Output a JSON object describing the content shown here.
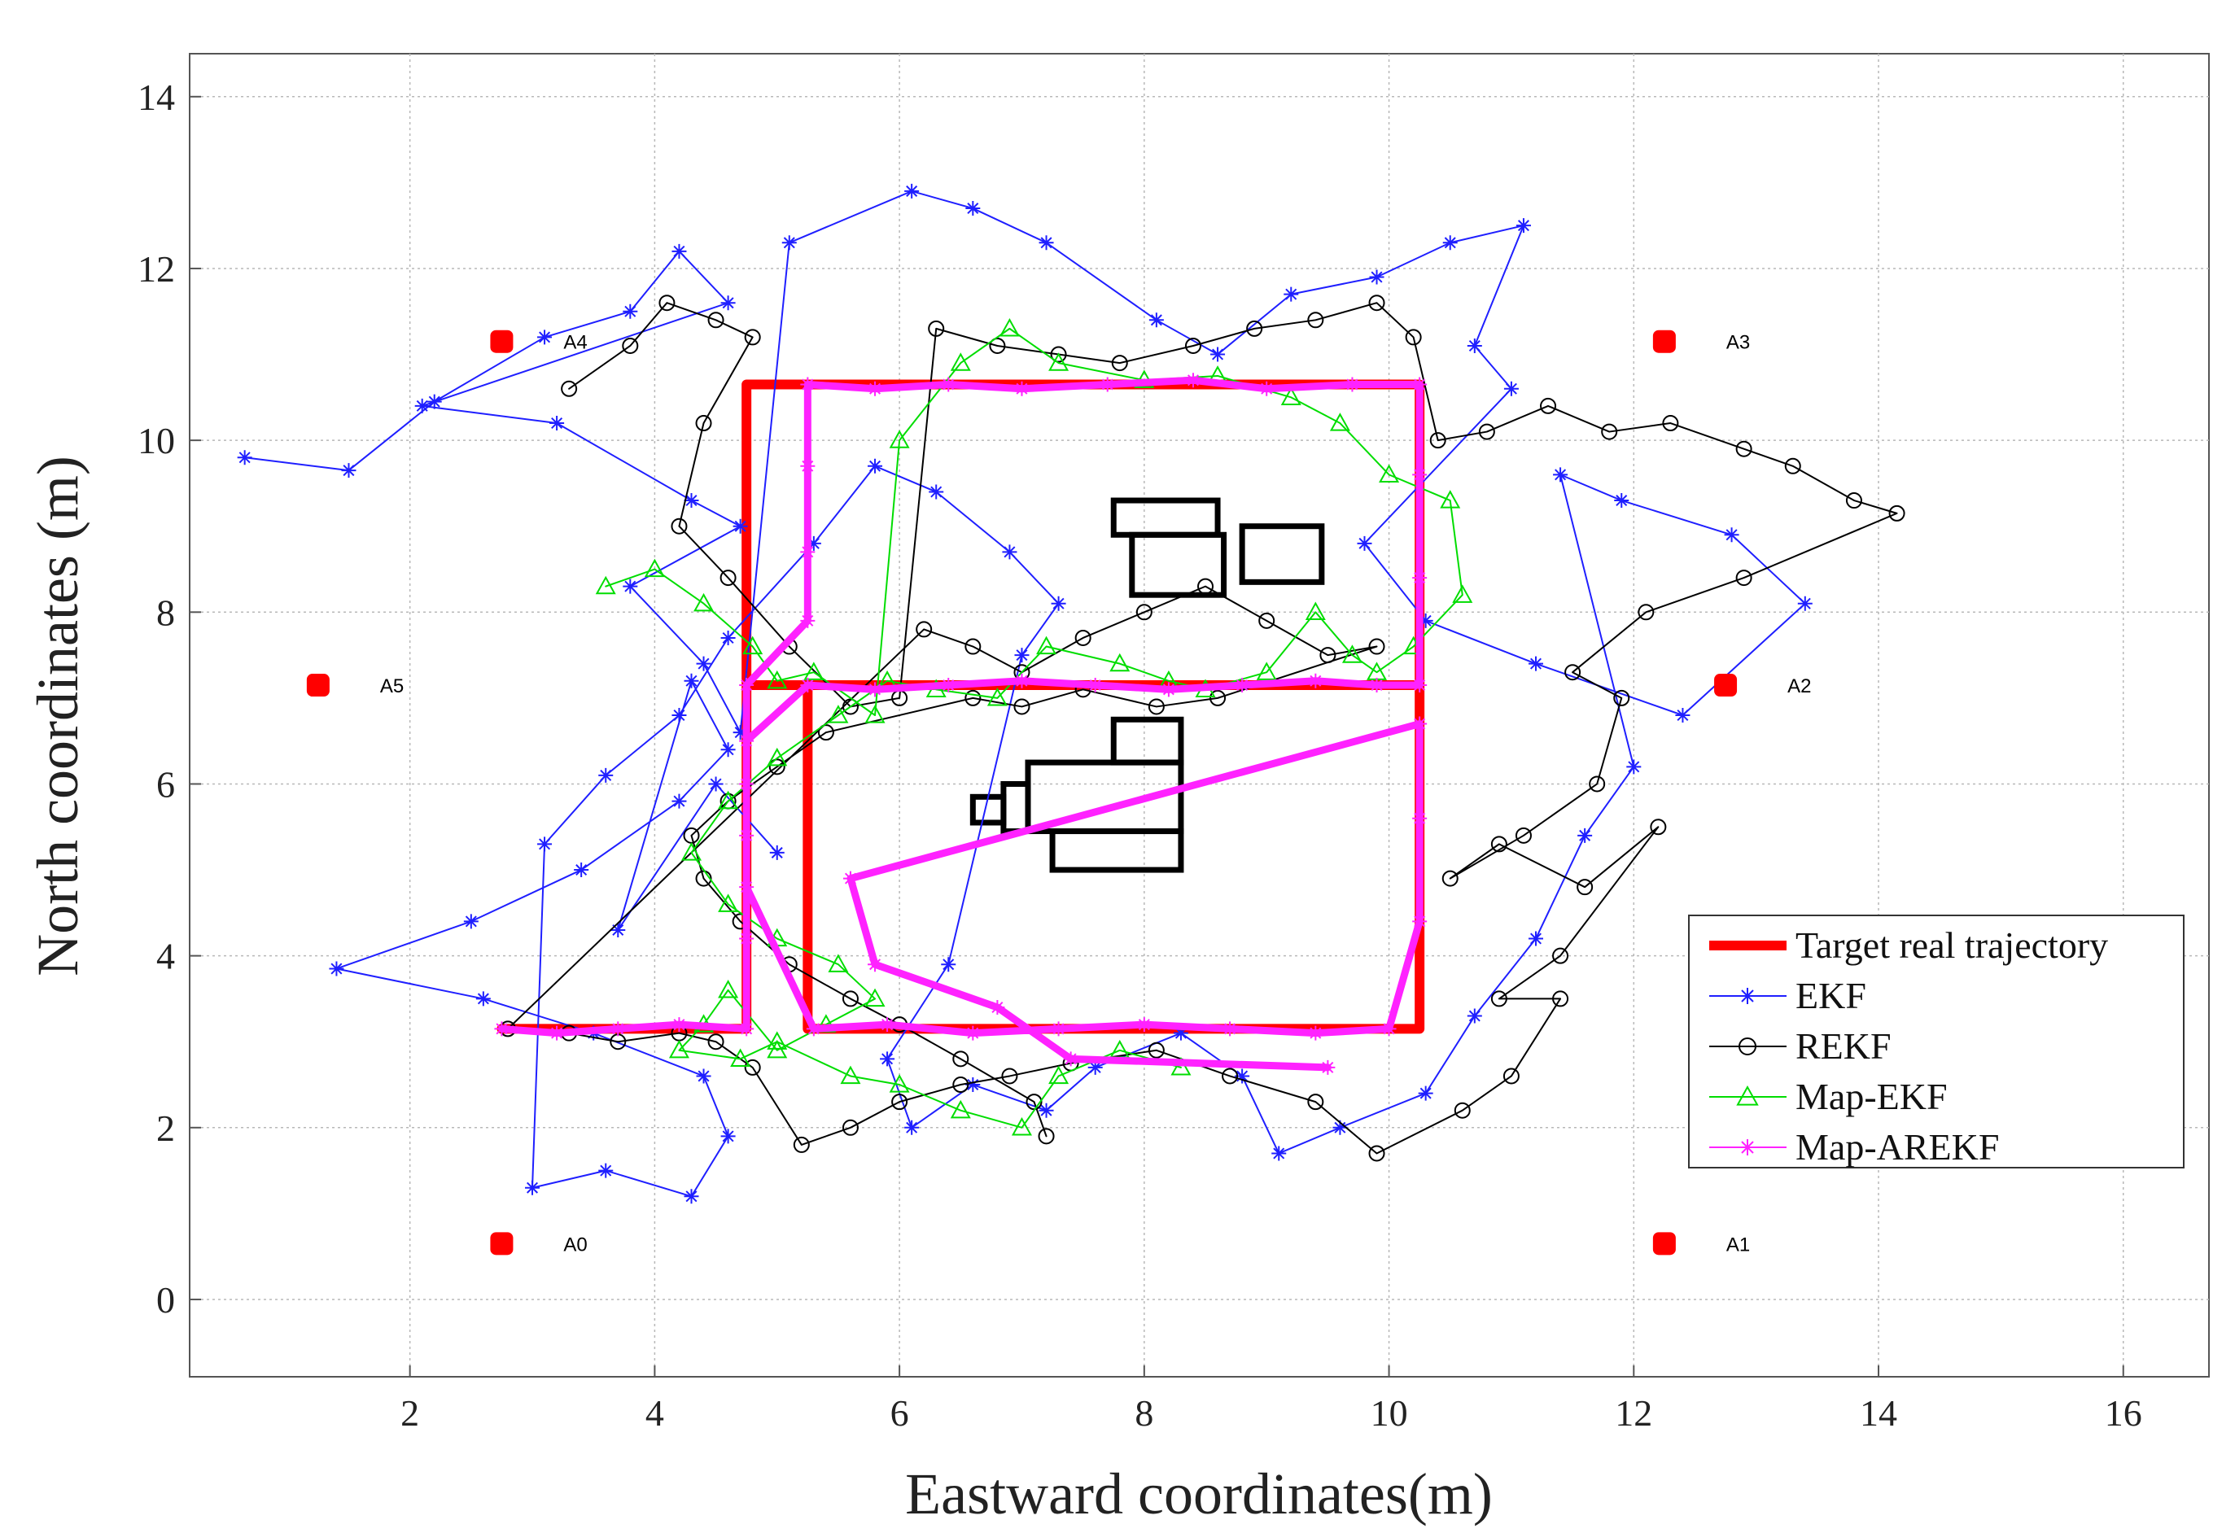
{
  "chart_data": {
    "type": "scatter",
    "title": "",
    "xlabel": "Eastward coordinates(m)",
    "ylabel": "North coordinates (m)",
    "xlim": [
      0.2,
      16.7
    ],
    "ylim": [
      -0.9,
      14.5
    ],
    "xticks": [
      "2",
      "4",
      "6",
      "8",
      "10",
      "12",
      "14",
      "16"
    ],
    "yticks": [
      "0",
      "2",
      "4",
      "6",
      "8",
      "10",
      "12",
      "14"
    ],
    "grid": true,
    "legend_position": "right",
    "anchors": [
      {
        "name": "A0",
        "x": 2.75,
        "y": 0.65
      },
      {
        "name": "A1",
        "x": 12.25,
        "y": 0.65
      },
      {
        "name": "A2",
        "x": 12.75,
        "y": 7.15
      },
      {
        "name": "A3",
        "x": 12.25,
        "y": 11.15
      },
      {
        "name": "A4",
        "x": 2.75,
        "y": 11.15
      },
      {
        "name": "A5",
        "x": 1.25,
        "y": 7.15
      }
    ],
    "obstacles": [
      {
        "x": [
          7.75,
          8.6
        ],
        "y": [
          8.9,
          9.3
        ]
      },
      {
        "x": [
          7.9,
          8.65
        ],
        "y": [
          8.2,
          8.9
        ]
      },
      {
        "x": [
          8.8,
          9.45
        ],
        "y": [
          8.35,
          9.0
        ]
      },
      {
        "x": [
          7.75,
          8.3
        ],
        "y": [
          6.25,
          6.75
        ]
      },
      {
        "x": [
          7.05,
          8.3
        ],
        "y": [
          5.45,
          6.25
        ]
      },
      {
        "x": [
          6.6,
          6.85
        ],
        "y": [
          5.55,
          5.85
        ]
      },
      {
        "x": [
          6.85,
          7.05
        ],
        "y": [
          5.45,
          6.0
        ]
      },
      {
        "x": [
          7.25,
          8.3
        ],
        "y": [
          5.0,
          5.45
        ]
      }
    ],
    "series": [
      {
        "name": "Target real trajectory",
        "color": "#ff0000",
        "marker": "none",
        "x": [
          2.75,
          4.75,
          4.75,
          5.25,
          10.25,
          10.25,
          5.25,
          5.25,
          4.75,
          4.75,
          10.25,
          10.25
        ],
        "y": [
          3.15,
          3.15,
          7.15,
          7.15,
          7.15,
          3.15,
          3.15,
          7.15,
          7.15,
          10.65,
          10.65,
          7.15
        ]
      },
      {
        "name": "EKF",
        "color": "#1f1fff",
        "marker": "star",
        "x": [
          0.65,
          1.5,
          2.2,
          3.1,
          3.8,
          4.2,
          4.6,
          2.1,
          3.2,
          4.3,
          4.7,
          3.8,
          4.4,
          4.7,
          5.1,
          6.1,
          6.6,
          7.2,
          8.1,
          8.6,
          9.2,
          9.9,
          10.5,
          11.1,
          10.7,
          11.0,
          9.8,
          10.3,
          11.2,
          12.4,
          13.4,
          12.8,
          11.9,
          11.4,
          12.0,
          11.6,
          11.2,
          10.7,
          10.3,
          9.6,
          9.1,
          8.8,
          8.3,
          7.6,
          7.2,
          6.6,
          6.1,
          5.9,
          6.4,
          7.0,
          7.3,
          6.9,
          6.3,
          5.8,
          5.3,
          4.6,
          4.2,
          3.6,
          3.1,
          3.0,
          3.6,
          4.3,
          4.6,
          4.4,
          3.5,
          2.6,
          1.4,
          2.5,
          3.4,
          4.2,
          4.6,
          4.3,
          3.7,
          4.5,
          5.0
        ],
        "y": [
          9.8,
          9.65,
          10.45,
          11.2,
          11.5,
          12.2,
          11.6,
          10.4,
          10.2,
          9.3,
          9.0,
          8.3,
          7.4,
          6.6,
          12.3,
          12.9,
          12.7,
          12.3,
          11.4,
          11.0,
          11.7,
          11.9,
          12.3,
          12.5,
          11.1,
          10.6,
          8.8,
          7.9,
          7.4,
          6.8,
          8.1,
          8.9,
          9.3,
          9.6,
          6.2,
          5.4,
          4.2,
          3.3,
          2.4,
          2.0,
          1.7,
          2.6,
          3.1,
          2.7,
          2.2,
          2.5,
          2.0,
          2.8,
          3.9,
          7.5,
          8.1,
          8.7,
          9.4,
          9.7,
          8.8,
          7.7,
          6.8,
          6.1,
          5.3,
          1.3,
          1.5,
          1.2,
          1.9,
          2.6,
          3.1,
          3.5,
          3.85,
          4.4,
          5.0,
          5.8,
          6.4,
          7.2,
          4.3,
          6.0,
          5.2
        ]
      },
      {
        "name": "REKF",
        "color": "#000000",
        "marker": "circle",
        "x": [
          3.3,
          3.8,
          4.1,
          4.5,
          4.8,
          4.4,
          4.2,
          4.6,
          5.1,
          5.6,
          6.0,
          6.3,
          6.8,
          7.3,
          7.8,
          8.4,
          8.9,
          9.4,
          9.9,
          10.2,
          10.4,
          10.8,
          11.3,
          11.8,
          12.3,
          12.9,
          13.3,
          13.8,
          14.15,
          12.9,
          12.1,
          11.5,
          11.9,
          11.7,
          11.1,
          10.5,
          10.9,
          11.6,
          12.2,
          11.4,
          10.9,
          11.4,
          11.0,
          10.6,
          9.9,
          9.4,
          8.7,
          8.1,
          7.4,
          6.9,
          6.5,
          6.0,
          5.6,
          5.2,
          4.8,
          4.5,
          4.2,
          3.7,
          3.3,
          2.8,
          6.2,
          6.6,
          7.0,
          7.5,
          8.0,
          8.5,
          9.0,
          9.5,
          9.9,
          8.6,
          8.1,
          7.5,
          7.0,
          6.6,
          5.4,
          5.0,
          4.6,
          4.3,
          4.4,
          4.7,
          5.1,
          5.6,
          6.0,
          6.5,
          7.1,
          7.2
        ],
        "y": [
          10.6,
          11.1,
          11.6,
          11.4,
          11.2,
          10.2,
          9.0,
          8.4,
          7.6,
          6.9,
          7.0,
          11.3,
          11.1,
          11.0,
          10.9,
          11.1,
          11.3,
          11.4,
          11.6,
          11.2,
          10.0,
          10.1,
          10.4,
          10.1,
          10.2,
          9.9,
          9.7,
          9.3,
          9.15,
          8.4,
          8.0,
          7.3,
          7.0,
          6.0,
          5.4,
          4.9,
          5.3,
          4.8,
          5.5,
          4.0,
          3.5,
          3.5,
          2.6,
          2.2,
          1.7,
          2.3,
          2.6,
          2.9,
          2.75,
          2.6,
          2.5,
          2.3,
          2.0,
          1.8,
          2.7,
          3.0,
          3.1,
          3.0,
          3.1,
          3.15,
          7.8,
          7.6,
          7.3,
          7.7,
          8.0,
          8.3,
          7.9,
          7.5,
          7.6,
          7.0,
          6.9,
          7.1,
          6.9,
          7.0,
          6.6,
          6.2,
          5.8,
          5.4,
          4.9,
          4.4,
          3.9,
          3.5,
          3.2,
          2.8,
          2.3,
          1.9
        ]
      },
      {
        "name": "Map-EKF",
        "color": "#00dd00",
        "marker": "triangle",
        "x": [
          3.6,
          4.0,
          4.4,
          4.8,
          5.0,
          5.3,
          5.8,
          6.0,
          6.5,
          6.9,
          7.3,
          8.0,
          8.6,
          9.2,
          9.6,
          10.0,
          10.5,
          10.6,
          10.2,
          9.9,
          9.7,
          9.4,
          9.0,
          8.5,
          8.2,
          7.8,
          7.2,
          6.8,
          6.3,
          5.9,
          5.5,
          5.0,
          4.6,
          4.3,
          4.6,
          5.0,
          5.5,
          5.8,
          5.4,
          5.0,
          4.6,
          4.4,
          4.2,
          4.7,
          5.0,
          5.6,
          6.0,
          6.5,
          7.0,
          7.3,
          7.8,
          8.3
        ],
        "y": [
          8.3,
          8.5,
          8.1,
          7.6,
          7.2,
          7.3,
          6.8,
          10.0,
          10.9,
          11.3,
          10.9,
          10.7,
          10.75,
          10.5,
          10.2,
          9.6,
          9.3,
          8.2,
          7.6,
          7.3,
          7.5,
          8.0,
          7.3,
          7.1,
          7.2,
          7.4,
          7.6,
          7.0,
          7.1,
          7.2,
          6.8,
          6.3,
          5.8,
          5.2,
          4.6,
          4.2,
          3.9,
          3.5,
          3.2,
          2.9,
          3.6,
          3.2,
          2.9,
          2.8,
          3.0,
          2.6,
          2.5,
          2.2,
          2.0,
          2.6,
          2.9,
          2.7
        ]
      },
      {
        "name": "Map-AREKF",
        "color": "#ff22ff",
        "marker": "star",
        "x": [
          2.75,
          3.2,
          3.7,
          4.2,
          4.75,
          4.75,
          4.75,
          4.75,
          5.25,
          5.8,
          6.4,
          7.0,
          7.6,
          8.2,
          8.8,
          9.4,
          9.9,
          10.25,
          10.25,
          10.25,
          10.25,
          9.7,
          9.0,
          8.4,
          7.7,
          7.0,
          6.4,
          5.8,
          5.25,
          5.25,
          5.25,
          5.25,
          4.75,
          4.75,
          4.75,
          5.3,
          5.9,
          6.6,
          7.3,
          8.0,
          8.7,
          9.4,
          10.0,
          10.25,
          10.25,
          10.25,
          5.6,
          5.8,
          6.8,
          7.4,
          9.5
        ],
        "y": [
          3.15,
          3.1,
          3.15,
          3.2,
          3.15,
          4.2,
          5.4,
          6.5,
          7.15,
          7.1,
          7.15,
          7.2,
          7.15,
          7.1,
          7.15,
          7.2,
          7.15,
          7.15,
          8.4,
          9.6,
          10.65,
          10.65,
          10.6,
          10.7,
          10.65,
          10.6,
          10.65,
          10.6,
          10.65,
          9.7,
          8.7,
          7.9,
          7.15,
          6.0,
          4.8,
          3.15,
          3.2,
          3.1,
          3.15,
          3.2,
          3.15,
          3.1,
          3.15,
          4.4,
          5.6,
          6.7,
          4.9,
          3.9,
          3.4,
          2.8,
          2.7
        ]
      }
    ]
  }
}
